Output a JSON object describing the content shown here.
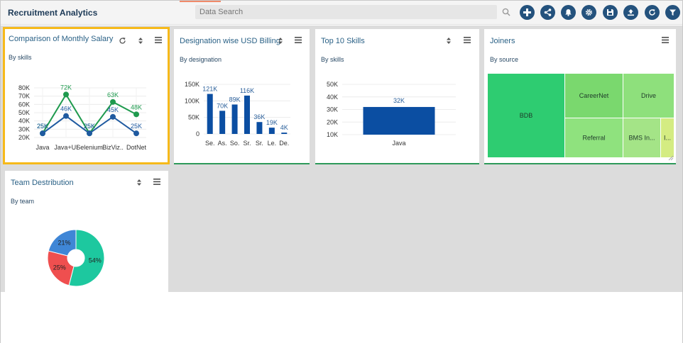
{
  "app": {
    "title": "Recruitment Analytics"
  },
  "search": {
    "placeholder": "Data Search"
  },
  "toolbar": {
    "buttons": [
      "add-icon",
      "share-icon",
      "bell-icon",
      "settings-icon",
      "save-icon",
      "export-icon",
      "refresh-icon",
      "filter-icon"
    ]
  },
  "colors": {
    "brand": "#24527d",
    "accent_selected": "#f6b91a",
    "green": "#1f9a4e",
    "blue": "#1f5aa0",
    "bar_blue": "#0b4ea2"
  },
  "cards": {
    "salary": {
      "title": "Comparison of Monthly Salary",
      "subtitle": "By skills",
      "chart_data": {
        "type": "line",
        "categories": [
          "Java",
          "Java+UI",
          "Selenium",
          "BizViz..",
          "DotNet"
        ],
        "series": [
          {
            "color": "#1f9a4e",
            "values": [
              25,
              72,
              25,
              63,
              48
            ],
            "labels": [
              "25K",
              "72K",
              "25K",
              "63K",
              "48K"
            ]
          },
          {
            "color": "#1f5aa0",
            "values": [
              25,
              46,
              25,
              45,
              25
            ],
            "labels": [
              "25K",
              "46K",
              "25K",
              "45K",
              "25K"
            ]
          }
        ],
        "yticks": [
          "20K",
          "30K",
          "40K",
          "50K",
          "60K",
          "70K",
          "80K"
        ],
        "ylim": [
          20,
          80
        ]
      }
    },
    "billing": {
      "title": "Designation wise USD Billing",
      "subtitle": "By designation",
      "chart_data": {
        "type": "bar",
        "categories": [
          "Se.",
          "As.",
          "So.",
          "Sr.",
          "Sr.",
          "Le.",
          "De."
        ],
        "values": [
          121,
          70,
          89,
          116,
          36,
          19,
          4
        ],
        "labels": [
          "121K",
          "70K",
          "89K",
          "116K",
          "36K",
          "19K",
          "4K"
        ],
        "yticks": [
          "0",
          "50K",
          "100K",
          "150K"
        ],
        "ylim": [
          0,
          150
        ]
      }
    },
    "skills": {
      "title": "Top 10 Skills",
      "subtitle": "By skills",
      "chart_data": {
        "type": "bar",
        "categories": [
          "Java"
        ],
        "values": [
          32
        ],
        "labels": [
          "32K"
        ],
        "yticks": [
          "10K",
          "20K",
          "30K",
          "40K",
          "50K"
        ],
        "ylim": [
          10,
          50
        ]
      }
    },
    "joiners": {
      "title": "Joiners",
      "subtitle": "By source",
      "chart_data": {
        "type": "treemap",
        "tiles": [
          {
            "label": "BDB",
            "color": "#2ecc71"
          },
          {
            "label": "CareerNet",
            "color": "#7ad86e"
          },
          {
            "label": "Drive",
            "color": "#8ee07c"
          },
          {
            "label": "Referral",
            "color": "#8fe27e"
          },
          {
            "label": "BMS In...",
            "color": "#a4e487"
          },
          {
            "label": "I...",
            "color": "#d4ec82"
          }
        ]
      }
    },
    "team": {
      "title": "Team Destribution",
      "subtitle": "By team",
      "chart_data": {
        "type": "pie",
        "slices": [
          {
            "value": 54,
            "label": "54%",
            "color": "#1dc89f"
          },
          {
            "value": 25,
            "label": "25%",
            "color": "#ef4f4f"
          },
          {
            "value": 21,
            "label": "21%",
            "color": "#3f86d6"
          }
        ]
      }
    }
  }
}
